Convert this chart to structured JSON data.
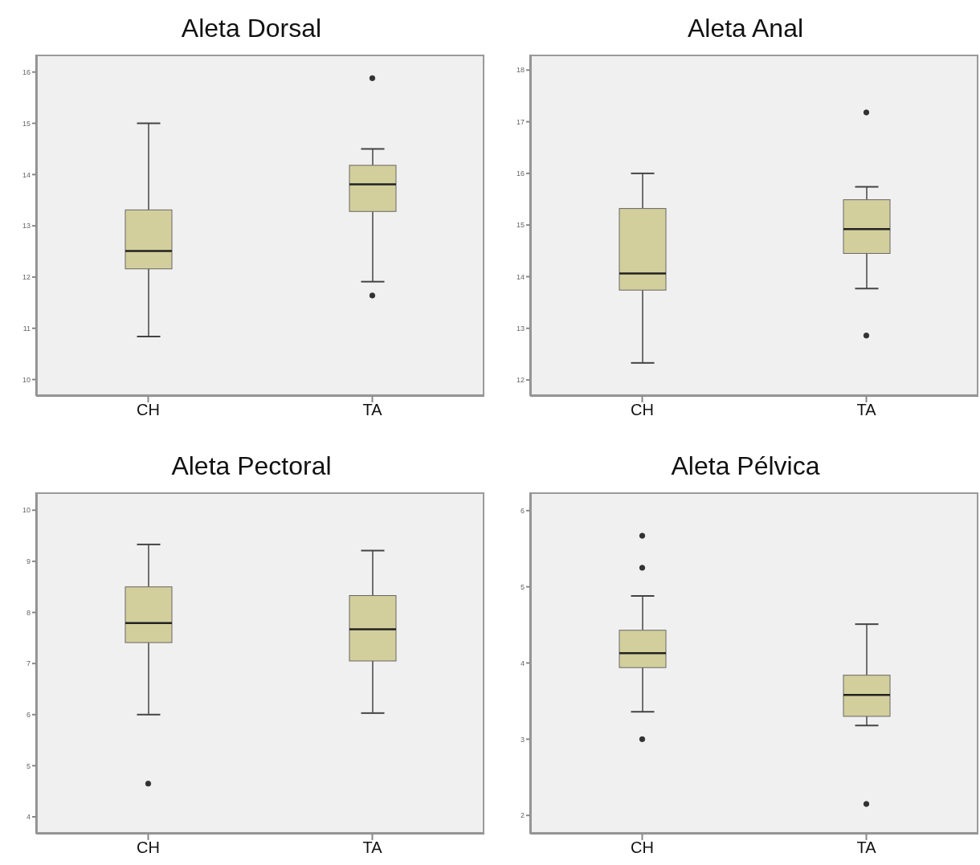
{
  "chart_data": [
    {
      "type": "box",
      "title": "Aleta Dorsal",
      "categories": [
        "CH",
        "TA"
      ],
      "color": "#d3cf9c",
      "ylim": [
        9.68,
        16.34
      ],
      "yticks": [
        10,
        11,
        12,
        13,
        14,
        15,
        16
      ],
      "grid": false,
      "boxes": [
        {
          "low": 10.84,
          "q1": 12.16,
          "median": 12.51,
          "q3": 13.31,
          "high": 15.0
        },
        {
          "low": 11.91,
          "q1": 13.28,
          "median": 13.81,
          "q3": 14.18,
          "high": 14.5,
          "outliers": [
            15.88,
            11.64
          ]
        }
      ]
    },
    {
      "type": "box",
      "title": "Aleta Anal",
      "categories": [
        "CH",
        "TA"
      ],
      "color": "#d3cf9c",
      "ylim": [
        11.69,
        18.3
      ],
      "yticks": [
        12,
        13,
        14,
        15,
        16,
        17,
        18
      ],
      "grid": false,
      "boxes": [
        {
          "low": 12.33,
          "q1": 13.74,
          "median": 14.06,
          "q3": 15.32,
          "high": 16.0
        },
        {
          "low": 13.77,
          "q1": 14.45,
          "median": 14.92,
          "q3": 15.49,
          "high": 15.74,
          "outliers": [
            17.18,
            12.86
          ]
        }
      ]
    },
    {
      "type": "box",
      "title": "Aleta Pectoral",
      "categories": [
        "CH",
        "TA"
      ],
      "color": "#d3cf9c",
      "ylim": [
        3.67,
        10.35
      ],
      "yticks": [
        4,
        5,
        6,
        7,
        8,
        9,
        10
      ],
      "grid": false,
      "boxes": [
        {
          "low": 6.0,
          "q1": 7.41,
          "median": 7.79,
          "q3": 8.5,
          "high": 9.33,
          "outliers": [
            4.65
          ]
        },
        {
          "low": 6.03,
          "q1": 7.05,
          "median": 7.67,
          "q3": 8.33,
          "high": 9.21
        }
      ]
    },
    {
      "type": "box",
      "title": "Aleta Pélvica",
      "categories": [
        "CH",
        "TA"
      ],
      "color": "#d3cf9c",
      "ylim": [
        1.76,
        6.24
      ],
      "yticks": [
        2,
        3,
        4,
        5,
        6
      ],
      "grid": false,
      "boxes": [
        {
          "low": 3.36,
          "q1": 3.94,
          "median": 4.13,
          "q3": 4.43,
          "high": 4.88,
          "outliers": [
            5.67,
            5.25,
            3.0
          ]
        },
        {
          "low": 3.18,
          "q1": 3.3,
          "median": 3.58,
          "q3": 3.84,
          "high": 4.51,
          "outliers": [
            2.15
          ]
        }
      ]
    }
  ]
}
